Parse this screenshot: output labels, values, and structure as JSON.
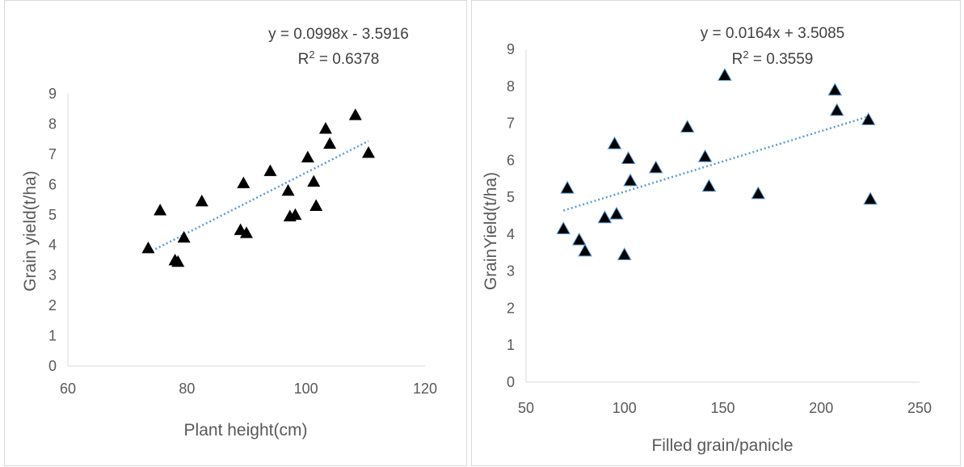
{
  "chart_data": [
    {
      "type": "scatter",
      "xlabel": "Plant height(cm)",
      "ylabel": "Grain yield(t/ha)",
      "xlim": [
        60,
        120
      ],
      "ylim": [
        0,
        9
      ],
      "xticks": [
        "60",
        "80",
        "100",
        "120"
      ],
      "yticks": [
        "0",
        "1",
        "2",
        "3",
        "4",
        "5",
        "6",
        "7",
        "8",
        "9"
      ],
      "grid": false,
      "marker": "triangle",
      "marker_color": "#000000",
      "trendline_color": "#5b9bd5",
      "trendline": {
        "slope": 0.0998,
        "intercept": -3.5916,
        "x_range": [
          73.5,
          110.5
        ]
      },
      "equation": "y = 0.0998x - 3.5916",
      "r2_label": "R",
      "r2_sup": "2",
      "r2_value": " = 0.6378",
      "points": [
        {
          "x": 73.5,
          "y": 3.9
        },
        {
          "x": 75.5,
          "y": 5.15
        },
        {
          "x": 78,
          "y": 3.5
        },
        {
          "x": 78.5,
          "y": 3.45
        },
        {
          "x": 79.5,
          "y": 4.25
        },
        {
          "x": 82.5,
          "y": 5.45
        },
        {
          "x": 89,
          "y": 4.5
        },
        {
          "x": 89.5,
          "y": 6.05
        },
        {
          "x": 90,
          "y": 4.4
        },
        {
          "x": 94,
          "y": 6.45
        },
        {
          "x": 97,
          "y": 5.8
        },
        {
          "x": 97.3,
          "y": 4.95
        },
        {
          "x": 98.2,
          "y": 5.0
        },
        {
          "x": 100.3,
          "y": 6.9
        },
        {
          "x": 101.3,
          "y": 6.1
        },
        {
          "x": 101.7,
          "y": 5.3
        },
        {
          "x": 103.3,
          "y": 7.85
        },
        {
          "x": 104,
          "y": 7.35
        },
        {
          "x": 108.3,
          "y": 8.3
        },
        {
          "x": 110.5,
          "y": 7.05
        }
      ]
    },
    {
      "type": "scatter",
      "xlabel": "Filled grain/panicle",
      "ylabel": "GrainYield(t/ha)",
      "xlim": [
        50,
        250
      ],
      "ylim": [
        0,
        9
      ],
      "xticks": [
        "50",
        "100",
        "150",
        "200",
        "250"
      ],
      "yticks": [
        "0",
        "1",
        "2",
        "3",
        "4",
        "5",
        "6",
        "7",
        "8",
        "9"
      ],
      "grid": false,
      "marker": "triangle",
      "marker_color": "#000000",
      "marker_edge": "#5b9bd5",
      "trendline_color": "#5b9bd5",
      "trendline": {
        "slope": 0.0164,
        "intercept": 3.5085,
        "x_range": [
          69,
          224
        ]
      },
      "equation": "y = 0.0164x + 3.5085",
      "r2_label": "R",
      "r2_sup": "2",
      "r2_value": " = 0.3559",
      "points": [
        {
          "x": 69,
          "y": 4.15
        },
        {
          "x": 71,
          "y": 5.25
        },
        {
          "x": 77,
          "y": 3.85
        },
        {
          "x": 80,
          "y": 3.55
        },
        {
          "x": 90,
          "y": 4.45
        },
        {
          "x": 95,
          "y": 6.45
        },
        {
          "x": 96,
          "y": 4.55
        },
        {
          "x": 100,
          "y": 3.45
        },
        {
          "x": 102,
          "y": 6.05
        },
        {
          "x": 103,
          "y": 5.45
        },
        {
          "x": 116,
          "y": 5.8
        },
        {
          "x": 132,
          "y": 6.9
        },
        {
          "x": 141,
          "y": 6.1
        },
        {
          "x": 143,
          "y": 5.3
        },
        {
          "x": 151,
          "y": 8.3
        },
        {
          "x": 168,
          "y": 5.1
        },
        {
          "x": 207,
          "y": 7.9
        },
        {
          "x": 208,
          "y": 7.35
        },
        {
          "x": 224,
          "y": 7.1
        },
        {
          "x": 225,
          "y": 4.95
        }
      ]
    }
  ]
}
